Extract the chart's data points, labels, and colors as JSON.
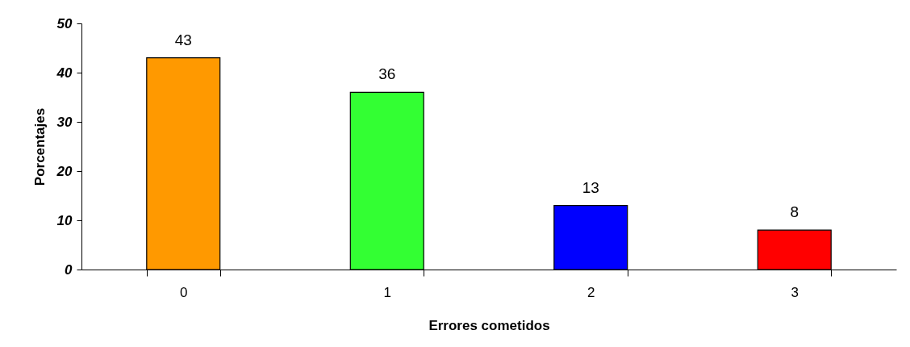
{
  "chart_data": {
    "type": "bar",
    "xlabel": "Errores cometidos",
    "ylabel": "Porcentajes",
    "categories": [
      "0",
      "1",
      "2",
      "3"
    ],
    "values": [
      43,
      36,
      13,
      8
    ],
    "colors": [
      "#ff9900",
      "#33ff33",
      "#0000ff",
      "#ff0000"
    ],
    "ylim": [
      0,
      50
    ],
    "yticks": [
      0,
      10,
      20,
      30,
      40,
      50
    ],
    "grid": false,
    "data_labels": true
  }
}
